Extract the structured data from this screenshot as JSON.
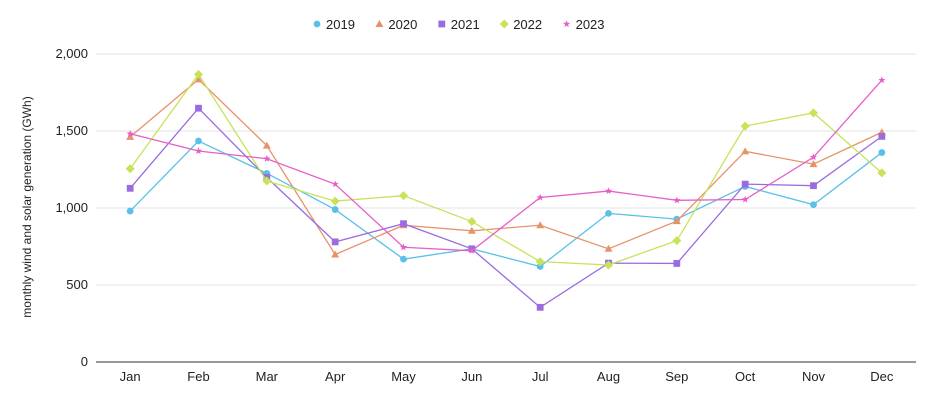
{
  "chart_data": {
    "type": "line",
    "title": "",
    "xlabel": "",
    "ylabel": "monthly wind and solar generation (GWh)",
    "categories": [
      "Jan",
      "Feb",
      "Mar",
      "Apr",
      "May",
      "Jun",
      "Jul",
      "Aug",
      "Sep",
      "Oct",
      "Nov",
      "Dec"
    ],
    "ylim": [
      0,
      2000
    ],
    "yticks": [
      0,
      500,
      1000,
      1500,
      2000
    ],
    "ytick_labels": [
      "0",
      "500",
      "1,000",
      "1,500",
      "2,000"
    ],
    "grid": true,
    "legend_position": "top-center",
    "series": [
      {
        "name": "2019",
        "color": "#5bc0e8",
        "marker": "circle",
        "values": [
          980,
          1435,
          1225,
          990,
          668,
          735,
          620,
          965,
          928,
          1140,
          1022,
          1360
        ]
      },
      {
        "name": "2020",
        "color": "#e8926a",
        "marker": "triangle",
        "values": [
          1462,
          1835,
          1405,
          698,
          888,
          852,
          888,
          735,
          915,
          1368,
          1285,
          1492
        ]
      },
      {
        "name": "2021",
        "color": "#9b6be0",
        "marker": "square",
        "values": [
          1128,
          1648,
          1198,
          780,
          898,
          735,
          355,
          642,
          640,
          1155,
          1145,
          1465
        ]
      },
      {
        "name": "2022",
        "color": "#c6e35a",
        "marker": "diamond",
        "values": [
          1255,
          1868,
          1175,
          1045,
          1080,
          912,
          652,
          630,
          788,
          1532,
          1618,
          1228
        ]
      },
      {
        "name": "2023",
        "color": "#e85ec8",
        "marker": "star",
        "values": [
          1482,
          1370,
          1320,
          1155,
          745,
          722,
          1068,
          1110,
          1050,
          1055,
          1330,
          1830
        ]
      }
    ]
  }
}
